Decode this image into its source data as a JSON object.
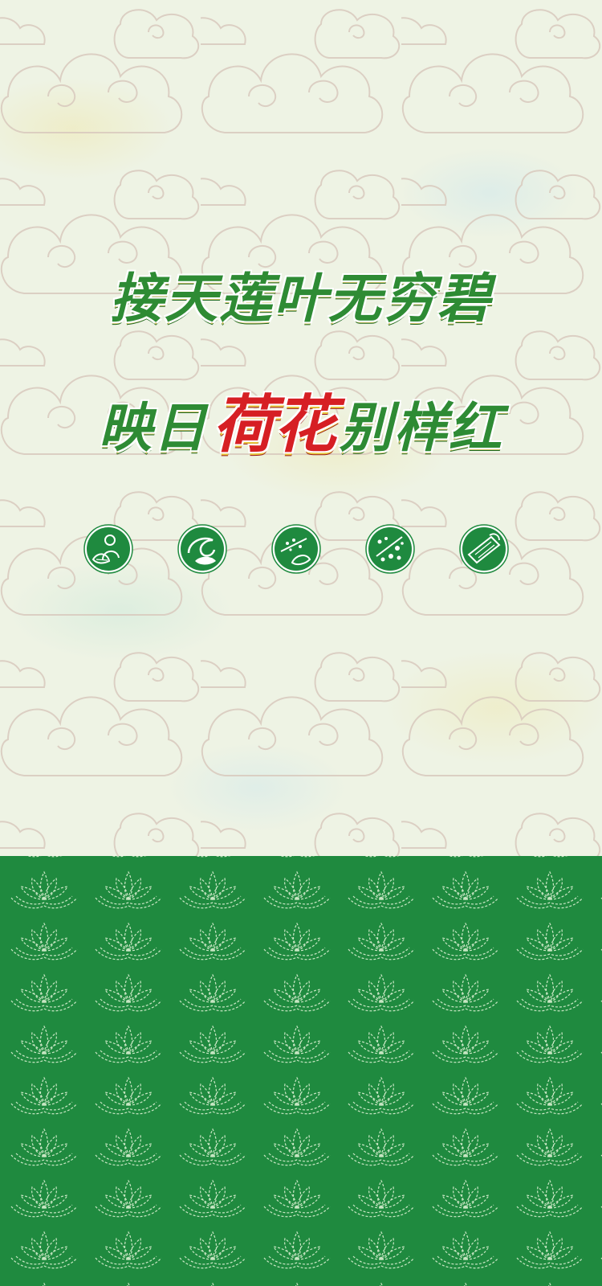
{
  "headline": {
    "line1": "接天莲叶无穷碧",
    "line2_prefix": "映日",
    "line2_highlight": "荷花",
    "line2_suffix": "别样红"
  },
  "icons": [
    {
      "name": "farmer-picking-leaf-icon"
    },
    {
      "name": "lotus-leaf-swirl-icon"
    },
    {
      "name": "leaf-seeds-icon"
    },
    {
      "name": "granules-icon"
    },
    {
      "name": "leaf-packet-icon"
    }
  ],
  "colors": {
    "brand_green": "#2e8b34",
    "accent_red": "#d61f24",
    "bottom_background": "#1f8a3f",
    "top_background": "#eef3e4"
  }
}
